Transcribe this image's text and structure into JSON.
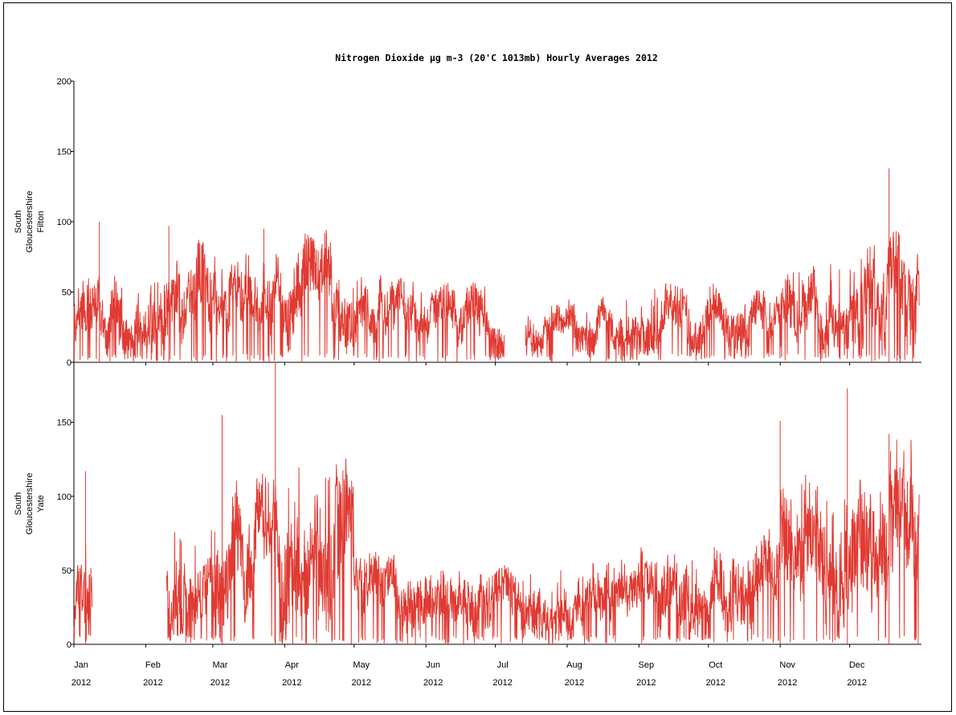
{
  "chart_data": {
    "type": "line",
    "title": "Nitrogen Dioxide µg m-3 (20'C 1013mb) Hourly Averages 2012",
    "x_axis": {
      "month_labels": [
        "Jan",
        "Feb",
        "Mar",
        "Apr",
        "May",
        "Jun",
        "Jul",
        "Aug",
        "Sep",
        "Oct",
        "Nov",
        "Dec"
      ],
      "year_label": "2012",
      "range": [
        "2012-01-01",
        "2012-12-31"
      ]
    },
    "panels": [
      {
        "ylabel_lines": [
          "South",
          "Gloucestershire",
          "Filton"
        ],
        "ylim": [
          0,
          200
        ],
        "yticks": [
          0,
          50,
          100,
          150,
          200
        ],
        "series": {
          "color": "#e03a32",
          "gaps": [
            [
              "2012-07-05",
              "2012-07-14"
            ]
          ],
          "monthly_typical_max": [
            60,
            85,
            75,
            90,
            60,
            55,
            40,
            45,
            55,
            55,
            70,
            90
          ],
          "peaks": [
            {
              "date": "2012-01-12",
              "value": 100
            },
            {
              "date": "2012-02-11",
              "value": 97
            },
            {
              "date": "2012-03-23",
              "value": 95
            },
            {
              "date": "2012-12-18",
              "value": 138
            }
          ]
        }
      },
      {
        "ylabel_lines": [
          "South",
          "Gloucestershire",
          "Yate"
        ],
        "ylim": [
          0,
          190
        ],
        "yticks": [
          0,
          50,
          100,
          150
        ],
        "series": {
          "color": "#e03a32",
          "gaps": [
            [
              "2012-01-09",
              "2012-02-10"
            ]
          ],
          "monthly_typical_max": [
            70,
            80,
            110,
            130,
            60,
            55,
            55,
            55,
            65,
            75,
            110,
            140
          ],
          "peaks": [
            {
              "date": "2012-01-06",
              "value": 117
            },
            {
              "date": "2012-03-05",
              "value": 155
            },
            {
              "date": "2012-03-28",
              "value": 190
            },
            {
              "date": "2012-11-01",
              "value": 151
            },
            {
              "date": "2012-11-30",
              "value": 173
            },
            {
              "date": "2012-12-18",
              "value": 142
            }
          ]
        }
      }
    ]
  }
}
